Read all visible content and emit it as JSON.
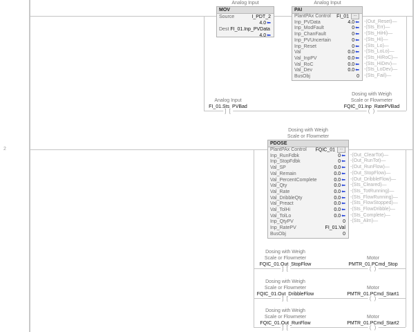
{
  "rungs": [
    {
      "number": "",
      "mov": {
        "title": "Analog Input",
        "name": "MOV",
        "source_label": "Source",
        "source_tag": "I_PDT_2",
        "source_value": "4.0",
        "dest_label": "Dest",
        "dest_tag": "FI_01.Inp_PVData",
        "dest_value": "4.0"
      },
      "pai": {
        "title": "Analog Input",
        "name": "PAI",
        "control_label": "PlantPAx Control",
        "control_tag": "FI_01",
        "rows": [
          {
            "label": "Inp_PVData",
            "value": "4.0",
            "arrow": true
          },
          {
            "label": "Inp_ModFault",
            "value": "0",
            "arrow": true
          },
          {
            "label": "Inp_ChanFault",
            "value": "0",
            "arrow": true
          },
          {
            "label": "Inp_PVUncertain",
            "value": "0",
            "arrow": true
          },
          {
            "label": "Inp_Reset",
            "value": "0",
            "arrow": true
          },
          {
            "label": "Val",
            "value": "0.0",
            "arrow": true
          },
          {
            "label": "Val_InpPV",
            "value": "0.0",
            "arrow": true
          },
          {
            "label": "Val_RoC",
            "value": "0.0",
            "arrow": true
          },
          {
            "label": "Val_Dev",
            "value": "0.0",
            "arrow": true
          },
          {
            "label": "BusObj",
            "value": "0",
            "arrow": false
          }
        ],
        "outputs": [
          "Out_Reset",
          "Sts_Err",
          "Sts_HiHi",
          "Sts_Hi",
          "Sts_Lo",
          "Sts_LoLo",
          "Sts_HiRoC",
          "Sts_HiDev",
          "Sts_LoDev",
          "Sts_Fail"
        ]
      },
      "branch": {
        "contact_desc": [
          "Analog Input"
        ],
        "contact_tag": "FI_01.Sts_PVBad",
        "coil_desc": [
          "Dosing with Weigh",
          "Scale or Flowmeter"
        ],
        "coil_tag": "FQIC_01.Inp_RatePVBad"
      }
    },
    {
      "number": "2",
      "pdose": {
        "title": [
          "Dosing with Weigh",
          "Scale or Flowmeter"
        ],
        "name": "PDOSE",
        "control_label": "PlantPAx Control",
        "control_tag": "FQIC_01",
        "rows": [
          {
            "label": "Inp_RunFdbk",
            "value": "0",
            "arrow": true
          },
          {
            "label": "Inp_StopFdbk",
            "value": "0",
            "arrow": true
          },
          {
            "label": "Val_SP",
            "value": "0.0",
            "arrow": true
          },
          {
            "label": "Val_Remain",
            "value": "0.0",
            "arrow": true
          },
          {
            "label": "Val_PercentComplete",
            "value": "0.0",
            "arrow": true
          },
          {
            "label": "Val_Qty",
            "value": "0.0",
            "arrow": true
          },
          {
            "label": "Val_Rate",
            "value": "0.0",
            "arrow": true
          },
          {
            "label": "Val_DribbleQty",
            "value": "0.0",
            "arrow": true
          },
          {
            "label": "Val_Preact",
            "value": "0.0",
            "arrow": true
          },
          {
            "label": "Val_TolHi",
            "value": "0.0",
            "arrow": true
          },
          {
            "label": "Val_TolLo",
            "value": "0.0",
            "arrow": true
          },
          {
            "label": "Inp_QtyPV",
            "value": "0",
            "arrow": false
          },
          {
            "label": "Inp_RatePV",
            "value": "FI_01.Val",
            "arrow": false
          },
          {
            "label": "BusObj",
            "value": "0",
            "arrow": false
          }
        ],
        "outputs": [
          "Out_ClearTot",
          "Out_RunTot",
          "Out_RunFlow",
          "Out_StopFlow",
          "Out_DribbleFlow",
          "Sts_Cleared",
          "Sts_TotRunning",
          "Sts_FlowRunning",
          "Sts_FlowStopped",
          "Sts_FlowDribble",
          "Sts_Complete",
          "Sts_Alm"
        ]
      },
      "branches": [
        {
          "contact_desc": [
            "Dosing with Weigh",
            "Scale or Flowmeter"
          ],
          "contact_tag": "FQIC_01.Out_StopFlow",
          "coil_desc": [
            "Motor"
          ],
          "coil_tag": "PMTR_01.PCmd_Stop"
        },
        {
          "contact_desc": [
            "Dosing with Weigh",
            "Scale or Flowmeter"
          ],
          "contact_tag": "FQIC_01.Out_DribbleFlow",
          "coil_desc": [
            "Motor"
          ],
          "coil_tag": "PMTR_01.PCmd_Start1"
        },
        {
          "contact_desc": [
            "Dosing with Weigh",
            "Scale or Flowmeter"
          ],
          "contact_tag": "FQIC_01.Out_RunFlow",
          "coil_desc": [
            "Motor"
          ],
          "coil_tag": "PMTR_01.PCmd_Start2"
        }
      ]
    }
  ],
  "glyphs": {
    "contact": "] [",
    "coil": "( )",
    "arrow": "⬅",
    "ellipsis": "..."
  },
  "colors": {
    "arrow": "#2443d8",
    "wire": "#c4c4c4",
    "box_header": "#dcdcdc"
  }
}
